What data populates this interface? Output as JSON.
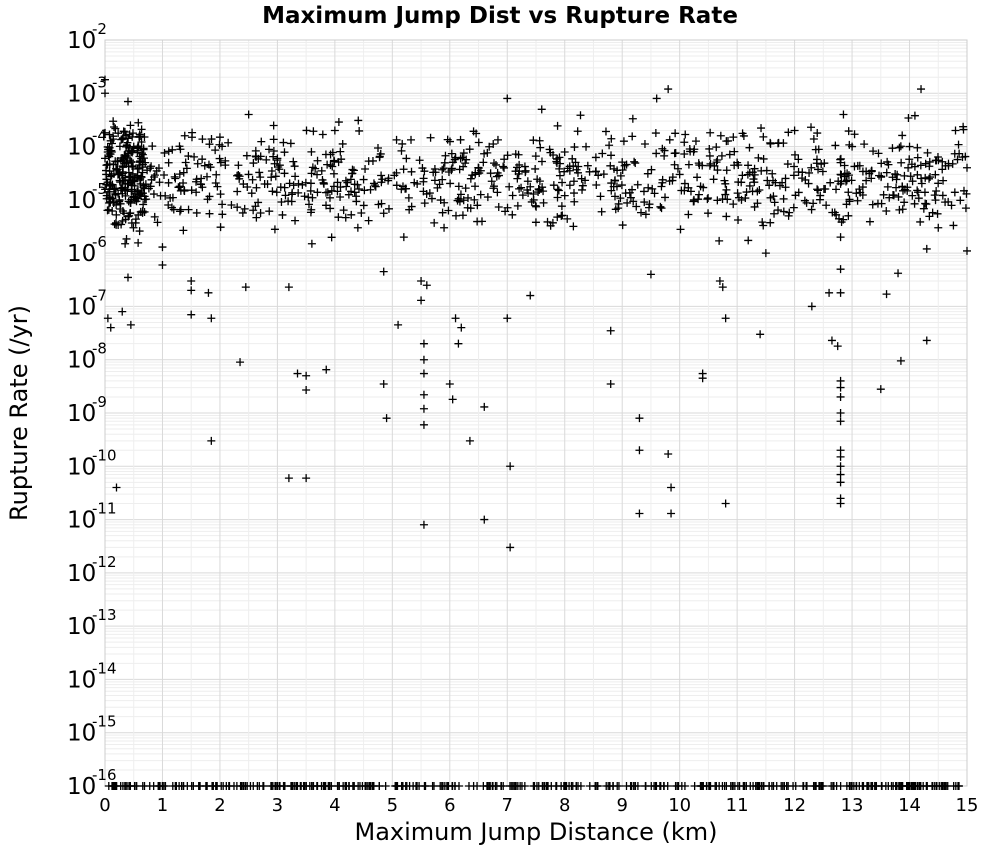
{
  "chart_data": {
    "type": "scatter",
    "title": "Maximum Jump Dist vs Rupture Rate",
    "xlabel": "Maximum Jump Distance (km)",
    "ylabel": "Rupture Rate (/yr)",
    "xlim": [
      0,
      15
    ],
    "ylim": [
      1e-16,
      0.01
    ],
    "yscale": "log",
    "x_ticks": [
      "0",
      "1",
      "2",
      "3",
      "4",
      "5",
      "6",
      "7",
      "8",
      "9",
      "10",
      "11",
      "12",
      "13",
      "14",
      "15"
    ],
    "y_ticks": [
      {
        "base": "10",
        "exp": "-2"
      },
      {
        "base": "10",
        "exp": "-3"
      },
      {
        "base": "10",
        "exp": "-4"
      },
      {
        "base": "10",
        "exp": "-5"
      },
      {
        "base": "10",
        "exp": "-6"
      },
      {
        "base": "10",
        "exp": "-7"
      },
      {
        "base": "10",
        "exp": "-8"
      },
      {
        "base": "10",
        "exp": "-9"
      },
      {
        "base": "10",
        "exp": "-10"
      },
      {
        "base": "10",
        "exp": "-11"
      },
      {
        "base": "10",
        "exp": "-12"
      },
      {
        "base": "10",
        "exp": "-13"
      },
      {
        "base": "10",
        "exp": "-14"
      },
      {
        "base": "10",
        "exp": "-15"
      },
      {
        "base": "10",
        "exp": "-16"
      }
    ],
    "grid": true,
    "marker": "+",
    "marker_color": "#000000",
    "points": [
      [
        0.0,
        0.0018
      ],
      [
        0.0,
        0.001
      ],
      [
        0.0,
        6e-05
      ],
      [
        0.02,
        3e-05
      ],
      [
        0.03,
        1.2e-05
      ],
      [
        0.05,
        6e-08
      ],
      [
        0.1,
        4e-08
      ],
      [
        0.2,
        4e-11
      ],
      [
        0.25,
        1e-05
      ],
      [
        0.3,
        8e-08
      ],
      [
        0.35,
        1.5e-06
      ],
      [
        0.4,
        3.5e-07
      ],
      [
        0.45,
        4.5e-08
      ],
      [
        0.4,
        0.0007
      ],
      [
        0.5,
        0.0001
      ],
      [
        0.6,
        0.00015
      ],
      [
        0.7,
        5e-05
      ],
      [
        0.9,
        3.5e-05
      ],
      [
        1.0,
        6e-07
      ],
      [
        1.0,
        1.3e-06
      ],
      [
        1.1,
        8e-06
      ],
      [
        1.3,
        1.8e-05
      ],
      [
        1.5,
        3e-07
      ],
      [
        1.5,
        2e-07
      ],
      [
        1.5,
        7e-08
      ],
      [
        1.8,
        1.8e-07
      ],
      [
        1.85,
        6e-08
      ],
      [
        1.85,
        3e-10
      ],
      [
        2.0,
        0.00015
      ],
      [
        2.2,
        8e-06
      ],
      [
        2.35,
        9e-09
      ],
      [
        2.45,
        2.3e-07
      ],
      [
        2.5,
        0.0004
      ],
      [
        3.0,
        6e-05
      ],
      [
        3.2,
        2.3e-07
      ],
      [
        3.2,
        6e-11
      ],
      [
        3.35,
        5.5e-09
      ],
      [
        3.5,
        5e-09
      ],
      [
        3.5,
        2.7e-09
      ],
      [
        3.5,
        6e-11
      ],
      [
        3.6,
        1.5e-06
      ],
      [
        3.85,
        6.5e-09
      ],
      [
        4.0,
        0.0002
      ],
      [
        4.4,
        3e-06
      ],
      [
        4.85,
        4.5e-07
      ],
      [
        4.85,
        3.5e-09
      ],
      [
        4.9,
        8e-10
      ],
      [
        5.1,
        4.5e-08
      ],
      [
        5.2,
        2e-06
      ],
      [
        5.5,
        3e-07
      ],
      [
        5.5,
        1.3e-07
      ],
      [
        5.55,
        2e-08
      ],
      [
        5.55,
        1e-08
      ],
      [
        5.55,
        5.5e-09
      ],
      [
        5.55,
        2.2e-09
      ],
      [
        5.55,
        1.2e-09
      ],
      [
        5.55,
        6e-10
      ],
      [
        5.55,
        8e-12
      ],
      [
        5.6,
        2.5e-07
      ],
      [
        5.9,
        3e-06
      ],
      [
        6.0,
        3.5e-09
      ],
      [
        6.05,
        1.8e-09
      ],
      [
        6.1,
        6e-08
      ],
      [
        6.15,
        2e-08
      ],
      [
        6.2,
        4e-08
      ],
      [
        6.35,
        3e-10
      ],
      [
        6.6,
        1.3e-09
      ],
      [
        6.6,
        1e-11
      ],
      [
        7.0,
        6e-08
      ],
      [
        7.05,
        1e-10
      ],
      [
        7.05,
        3e-12
      ],
      [
        7.0,
        0.0008
      ],
      [
        7.4,
        1.6e-07
      ],
      [
        7.6,
        0.0005
      ],
      [
        8.0,
        1.2e-05
      ],
      [
        8.8,
        3.5e-08
      ],
      [
        8.8,
        3.5e-09
      ],
      [
        9.3,
        8e-10
      ],
      [
        9.3,
        2e-10
      ],
      [
        9.3,
        1.3e-11
      ],
      [
        9.5,
        4e-07
      ],
      [
        9.6,
        0.0008
      ],
      [
        9.8,
        0.0012
      ],
      [
        9.8,
        1.7e-10
      ],
      [
        9.85,
        4e-11
      ],
      [
        9.85,
        1.3e-11
      ],
      [
        10.0,
        3e-05
      ],
      [
        10.4,
        5.5e-09
      ],
      [
        10.4,
        4.5e-09
      ],
      [
        10.7,
        3e-07
      ],
      [
        10.75,
        2.3e-07
      ],
      [
        10.8,
        6e-08
      ],
      [
        10.8,
        2e-11
      ],
      [
        11.0,
        5e-05
      ],
      [
        11.4,
        3e-08
      ],
      [
        11.5,
        1e-06
      ],
      [
        12.0,
        0.0002
      ],
      [
        12.3,
        1e-07
      ],
      [
        12.6,
        1.8e-07
      ],
      [
        12.65,
        2.3e-08
      ],
      [
        12.75,
        1.8e-08
      ],
      [
        12.8,
        4e-09
      ],
      [
        12.8,
        3e-09
      ],
      [
        12.8,
        2e-09
      ],
      [
        12.8,
        1e-09
      ],
      [
        12.8,
        7e-10
      ],
      [
        12.8,
        2e-10
      ],
      [
        12.8,
        1.5e-10
      ],
      [
        12.8,
        1e-10
      ],
      [
        12.8,
        7e-11
      ],
      [
        12.8,
        5e-11
      ],
      [
        12.8,
        2.5e-11
      ],
      [
        12.8,
        2e-11
      ],
      [
        12.8,
        1.8e-07
      ],
      [
        12.8,
        5e-07
      ],
      [
        12.8,
        2e-06
      ],
      [
        12.8,
        5e-05
      ],
      [
        12.8,
        3e-05
      ],
      [
        12.8,
        2e-05
      ],
      [
        12.85,
        0.0004
      ],
      [
        13.0,
        0.0001
      ],
      [
        13.5,
        2.8e-09
      ],
      [
        13.6,
        1.7e-07
      ],
      [
        13.8,
        4.2e-07
      ],
      [
        13.85,
        9.5e-09
      ],
      [
        14.0,
        0.0001
      ],
      [
        14.2,
        0.0012
      ],
      [
        14.3,
        2.3e-08
      ],
      [
        14.3,
        1.2e-06
      ],
      [
        14.5,
        3e-06
      ],
      [
        14.8,
        0.0002
      ],
      [
        15.0,
        1.1e-06
      ],
      [
        15.0,
        4e-05
      ]
    ],
    "floor_markers_note": "dense row of + marks at 1e-16 across full x range"
  }
}
